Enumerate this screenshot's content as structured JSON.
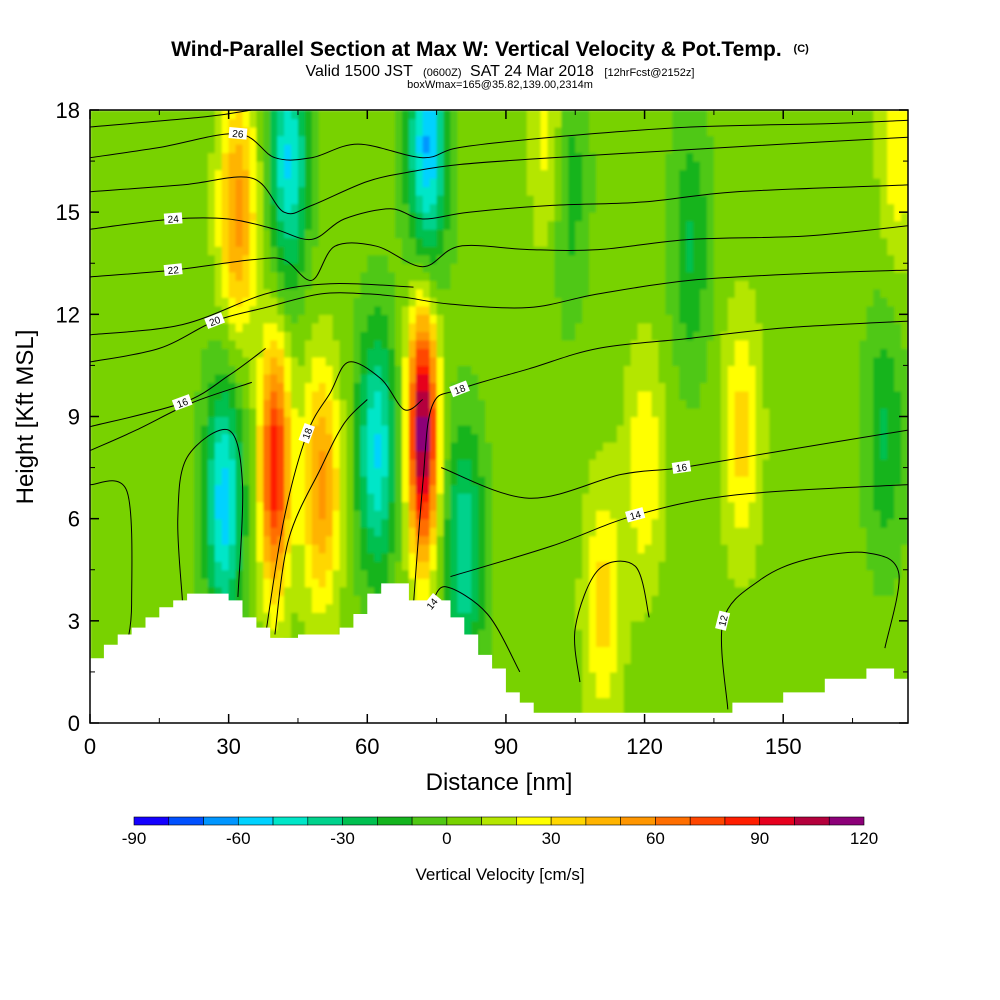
{
  "chart_data": {
    "type": "heatmap",
    "title": "Wind-Parallel Section at Max W: Vertical Velocity & Pot.Temp.",
    "title_tag": "(C)",
    "subtitle_prefix": "Valid 1500 JST",
    "subtitle_small_1": "(0600Z)",
    "subtitle_main": "SAT 24 Mar 2018",
    "subtitle_small_2": "[12hrFcst@2152z]",
    "info": "boxWmax=165@35.82,139.00,2314m",
    "xlabel": "Distance [nm]",
    "ylabel": "Height [Kft MSL]",
    "xlim": [
      0,
      177
    ],
    "ylim": [
      0,
      18
    ],
    "x_ticks": [
      0,
      30,
      60,
      90,
      120,
      150
    ],
    "y_ticks": [
      0,
      3,
      6,
      9,
      12,
      15,
      18
    ],
    "colorbar": {
      "label": "Vertical Velocity [cm/s]",
      "ticks": [
        -90,
        -60,
        -30,
        0,
        30,
        60,
        90,
        120
      ],
      "levels": [
        -90,
        -80,
        -70,
        -60,
        -50,
        -40,
        -30,
        -20,
        -10,
        0,
        10,
        20,
        30,
        40,
        50,
        60,
        70,
        80,
        90,
        100,
        110,
        120
      ],
      "colors": [
        "#1400ff",
        "#0050ff",
        "#0096ff",
        "#00d2ff",
        "#00e6c8",
        "#00d28c",
        "#00c050",
        "#14b41e",
        "#50c814",
        "#78d200",
        "#b4e600",
        "#ffff00",
        "#ffd700",
        "#ffb400",
        "#ff9600",
        "#ff6e00",
        "#ff4600",
        "#ff1e00",
        "#e6001e",
        "#b4003c",
        "#8c0078"
      ]
    },
    "vertical_velocity_features": [
      {
        "x": 40,
        "height": 7.5,
        "w": 85
      },
      {
        "x": 50,
        "height": 7.0,
        "w": 50
      },
      {
        "x": 32,
        "height": 15,
        "w": 50
      },
      {
        "x": 72,
        "height": 8.5,
        "w": 115
      },
      {
        "x": 100,
        "height": 17,
        "w": 30
      },
      {
        "x": 111,
        "height": 3.5,
        "w": 30
      },
      {
        "x": 120,
        "height": 7.5,
        "w": 25
      },
      {
        "x": 141,
        "height": 8.5,
        "w": 30
      },
      {
        "x": 175,
        "height": 17,
        "w": 25
      },
      {
        "x": 29,
        "height": 6.5,
        "w": -60
      },
      {
        "x": 62,
        "height": 8,
        "w": -55
      },
      {
        "x": 43,
        "height": 16.5,
        "w": -55
      },
      {
        "x": 73,
        "height": 17,
        "w": -65
      },
      {
        "x": 81,
        "height": 5,
        "w": -45
      },
      {
        "x": 103,
        "height": 16,
        "w": -30
      },
      {
        "x": 130,
        "height": 14,
        "w": -25
      },
      {
        "x": 172,
        "height": 8.5,
        "w": -25
      }
    ],
    "terrain": {
      "x": [
        0,
        3,
        6,
        9,
        12,
        15,
        18,
        21,
        24,
        27,
        30,
        33,
        36,
        39,
        45,
        51,
        54,
        57,
        60,
        63,
        66,
        69,
        72,
        75,
        78,
        81,
        84,
        87,
        90,
        93,
        96,
        99,
        120,
        138,
        139,
        150,
        159,
        168,
        174,
        177
      ],
      "height": [
        1.9,
        2.3,
        2.6,
        2.8,
        3.1,
        3.4,
        3.6,
        3.8,
        3.8,
        3.8,
        3.6,
        3.1,
        2.8,
        2.5,
        2.6,
        2.6,
        2.8,
        3.2,
        3.8,
        4.1,
        4.1,
        3.6,
        3.6,
        3.6,
        3.1,
        2.6,
        2.0,
        1.6,
        0.9,
        0.6,
        0.3,
        0.3,
        0.3,
        0.3,
        0.6,
        0.9,
        1.3,
        1.6,
        1.3,
        1.3
      ]
    },
    "theta_contours": [
      {
        "label": "12",
        "label_x": 137,
        "points": [
          [
            138,
            0.4
          ],
          [
            137,
            3
          ],
          [
            145,
            4.2
          ],
          [
            155,
            4.8
          ],
          [
            168,
            5.0
          ],
          [
            175,
            4.4
          ],
          [
            172,
            2.2
          ]
        ]
      },
      {
        "label": "12",
        "label_x": 0,
        "points": [
          [
            0,
            7
          ],
          [
            8,
            6.8
          ],
          [
            9,
            3.5
          ],
          [
            8,
            2.3
          ]
        ]
      },
      {
        "label": "14",
        "label_x": 75,
        "points": [
          [
            74,
            3.5
          ],
          [
            77,
            4.0
          ],
          [
            86,
            3.2
          ],
          [
            93,
            1.5
          ]
        ]
      },
      {
        "label": "14",
        "label_x": 0,
        "points": [
          [
            20,
            3.6
          ],
          [
            19,
            6
          ],
          [
            21,
            7.8
          ],
          [
            30,
            8.6
          ],
          [
            33,
            7
          ],
          [
            32,
            3.7
          ]
        ]
      },
      {
        "label": "14",
        "label_x": 118,
        "points": [
          [
            78,
            4.3
          ],
          [
            100,
            5.2
          ],
          [
            118,
            6.1
          ],
          [
            140,
            6.7
          ],
          [
            177,
            7.0
          ]
        ]
      },
      {
        "label": "14",
        "label_x": 0,
        "points": [
          [
            106,
            1.2
          ],
          [
            105,
            2.8
          ],
          [
            110,
            4.5
          ],
          [
            118,
            4.6
          ],
          [
            121,
            3.1
          ]
        ]
      },
      {
        "label": "16",
        "label_x": 0,
        "points": [
          [
            40,
            2.6
          ],
          [
            43,
            5.4
          ],
          [
            50,
            7.5
          ],
          [
            55,
            8.8
          ],
          [
            60,
            9.5
          ]
        ]
      },
      {
        "label": "16",
        "label_x": 0,
        "points": [
          [
            0,
            8
          ],
          [
            10,
            8.6
          ],
          [
            22,
            9.4
          ],
          [
            35,
            10
          ]
        ]
      },
      {
        "label": "16",
        "label_x": 128,
        "points": [
          [
            76,
            7.5
          ],
          [
            95,
            6.6
          ],
          [
            115,
            7.3
          ],
          [
            128,
            7.5
          ],
          [
            150,
            8.0
          ],
          [
            177,
            8.6
          ]
        ]
      },
      {
        "label": "16",
        "label_x": 20,
        "points": [
          [
            0,
            8.7
          ],
          [
            20,
            9.4
          ],
          [
            30,
            10.2
          ],
          [
            38,
            11
          ]
        ]
      },
      {
        "label": "18",
        "label_x": 47,
        "points": [
          [
            38,
            2.6
          ],
          [
            42,
            6
          ],
          [
            47,
            8.5
          ],
          [
            52,
            9.7
          ],
          [
            56,
            10.6
          ],
          [
            63,
            10.1
          ],
          [
            68,
            9.2
          ],
          [
            72,
            9.5
          ]
        ]
      },
      {
        "label": "18",
        "label_x": 80,
        "points": [
          [
            70,
            3.5
          ],
          [
            72,
            7
          ],
          [
            74,
            9.3
          ],
          [
            80,
            9.8
          ],
          [
            95,
            10.4
          ],
          [
            110,
            11.0
          ],
          [
            130,
            11.3
          ],
          [
            150,
            11.6
          ],
          [
            177,
            11.8
          ]
        ]
      },
      {
        "label": "20",
        "label_x": 27,
        "points": [
          [
            0,
            10.6
          ],
          [
            15,
            11.0
          ],
          [
            27,
            11.8
          ],
          [
            38,
            12.2
          ],
          [
            50,
            12.6
          ],
          [
            60,
            12.6
          ],
          [
            68,
            12.5
          ],
          [
            78,
            12.3
          ],
          [
            95,
            12.2
          ],
          [
            110,
            12.6
          ],
          [
            130,
            13.0
          ],
          [
            155,
            13.2
          ],
          [
            177,
            13.3
          ]
        ]
      },
      {
        "label": "20",
        "label_x": 0,
        "points": [
          [
            0,
            11.4
          ],
          [
            20,
            11.7
          ],
          [
            38,
            12.6
          ],
          [
            52,
            12.9
          ],
          [
            70,
            12.8
          ]
        ]
      },
      {
        "label": "22",
        "label_x": 18,
        "points": [
          [
            0,
            13.1
          ],
          [
            18,
            13.3
          ],
          [
            35,
            13.6
          ],
          [
            42,
            13.6
          ],
          [
            48,
            13.0
          ],
          [
            53,
            14.0
          ],
          [
            62,
            14.0
          ],
          [
            72,
            13.4
          ],
          [
            80,
            14.0
          ],
          [
            95,
            13.9
          ],
          [
            110,
            13.9
          ],
          [
            130,
            14.2
          ],
          [
            155,
            14.3
          ],
          [
            177,
            14.6
          ]
        ]
      },
      {
        "label": "24",
        "label_x": 18,
        "points": [
          [
            0,
            14.5
          ],
          [
            18,
            14.8
          ],
          [
            30,
            14.8
          ],
          [
            40,
            14.5
          ],
          [
            48,
            14.2
          ],
          [
            55,
            14.8
          ],
          [
            65,
            15.1
          ],
          [
            72,
            14.8
          ],
          [
            82,
            15.0
          ],
          [
            100,
            15.2
          ],
          [
            120,
            15.3
          ],
          [
            140,
            15.6
          ],
          [
            177,
            15.8
          ]
        ]
      },
      {
        "label": "26",
        "label_x": 0,
        "points": [
          [
            0,
            15.6
          ],
          [
            20,
            15.8
          ],
          [
            35,
            16.0
          ],
          [
            42,
            15.0
          ],
          [
            48,
            15.2
          ],
          [
            60,
            15.9
          ],
          [
            70,
            16.2
          ],
          [
            80,
            16.4
          ],
          [
            100,
            16.6
          ],
          [
            125,
            16.8
          ],
          [
            150,
            17.0
          ],
          [
            177,
            17.2
          ]
        ]
      },
      {
        "label": "26",
        "label_x": 32,
        "points": [
          [
            0,
            16.6
          ],
          [
            15,
            16.9
          ],
          [
            32,
            17.3
          ],
          [
            40,
            16.6
          ],
          [
            48,
            16.6
          ],
          [
            58,
            17.0
          ],
          [
            72,
            16.6
          ],
          [
            80,
            16.9
          ],
          [
            100,
            17.2
          ],
          [
            130,
            17.5
          ],
          [
            160,
            17.6
          ],
          [
            177,
            17.7
          ]
        ]
      },
      {
        "label": "",
        "label_x": 0,
        "points": [
          [
            0,
            17.5
          ],
          [
            25,
            17.8
          ],
          [
            35,
            18.0
          ]
        ]
      }
    ]
  }
}
